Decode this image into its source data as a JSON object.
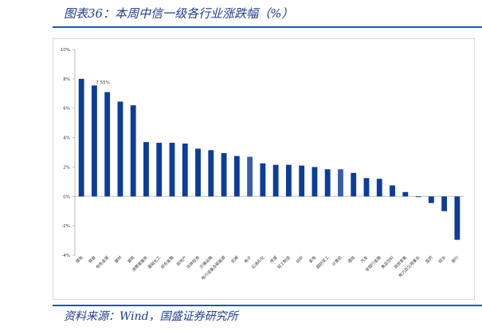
{
  "header": {
    "title": "图表36：本周中信一级各行业涨跌幅（%）"
  },
  "footer": {
    "source": "资料来源：Wind，国盛证券研究所"
  },
  "colors": {
    "bar": "#0b3d99",
    "bar_highlight": "#3a5ea8",
    "accent": "#1f5aa6"
  },
  "chart_data": {
    "type": "bar",
    "categories": [
      "煤炭",
      "钢铁",
      "有色金属",
      "建材",
      "建筑",
      "消费者服务",
      "基础化工",
      "综合金融",
      "房地产",
      "农林牧渔",
      "交通运输",
      "电力设备及新能源",
      "机械",
      "电子",
      "石油石化",
      "传媒",
      "轻工制造",
      "纺织",
      "家电",
      "国防军工",
      "计算机",
      "通信",
      "汽车",
      "非银行金融",
      "食品饮料",
      "商贸零售",
      "电力及公用事业",
      "医药",
      "综合",
      "银行"
    ],
    "values": [
      8.0,
      7.55,
      7.1,
      6.45,
      6.2,
      3.7,
      3.65,
      3.65,
      3.6,
      3.25,
      3.15,
      2.95,
      2.75,
      2.7,
      2.25,
      2.15,
      2.15,
      2.1,
      2.0,
      1.85,
      1.85,
      1.6,
      1.25,
      1.2,
      0.75,
      0.3,
      -0.05,
      -0.45,
      -1.0,
      -2.95
    ],
    "highlight_index": [
      13,
      20
    ],
    "yticks": [
      "-4%",
      "-2%",
      "0%",
      "2%",
      "4%",
      "6%",
      "8%",
      "10%"
    ],
    "ylim": [
      -4,
      10
    ],
    "annotation": {
      "text": "7.55%",
      "index": 1
    },
    "grid": false,
    "xlabel": "",
    "ylabel": ""
  }
}
